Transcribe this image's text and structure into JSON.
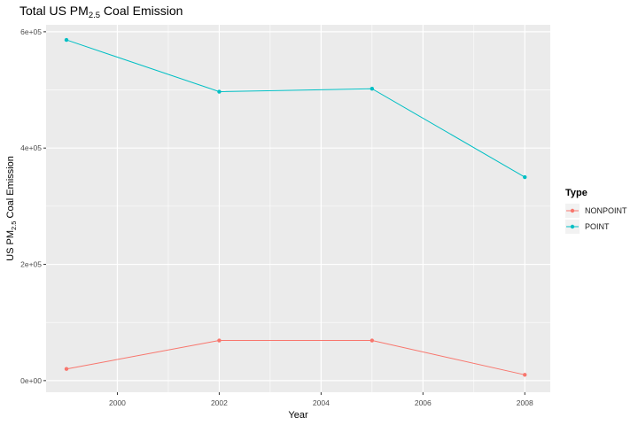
{
  "chart_data": {
    "type": "line",
    "title": {
      "main": "Total US PM",
      "sub": "2.5",
      "tail": " Coal Emission"
    },
    "xlabel": "Year",
    "ylabel": {
      "main": "US PM",
      "sub": "2.5",
      "tail": " Coal Emission"
    },
    "x_ticks": [
      2000,
      2002,
      2004,
      2006,
      2008
    ],
    "x_tick_labels": [
      "2000",
      "2002",
      "2004",
      "2006",
      "2008"
    ],
    "y_ticks": [
      0,
      200000,
      400000,
      600000
    ],
    "y_tick_labels": [
      "0e+00",
      "2e+05",
      "4e+05",
      "6e+05"
    ],
    "xlim": [
      1998.6,
      2008.5
    ],
    "ylim": [
      -20000,
      612000
    ],
    "grid": true,
    "legend": {
      "title": "Type",
      "placement": "right",
      "entries": [
        "NONPOINT",
        "POINT"
      ]
    },
    "series": [
      {
        "name": "NONPOINT",
        "color": "#F8766D",
        "x": [
          1999,
          2002,
          2005,
          2008
        ],
        "y": [
          20000,
          69000,
          69000,
          10000
        ]
      },
      {
        "name": "POINT",
        "color": "#00BFC4",
        "x": [
          1999,
          2002,
          2005,
          2008
        ],
        "y": [
          586000,
          497000,
          502000,
          350000
        ]
      }
    ]
  }
}
